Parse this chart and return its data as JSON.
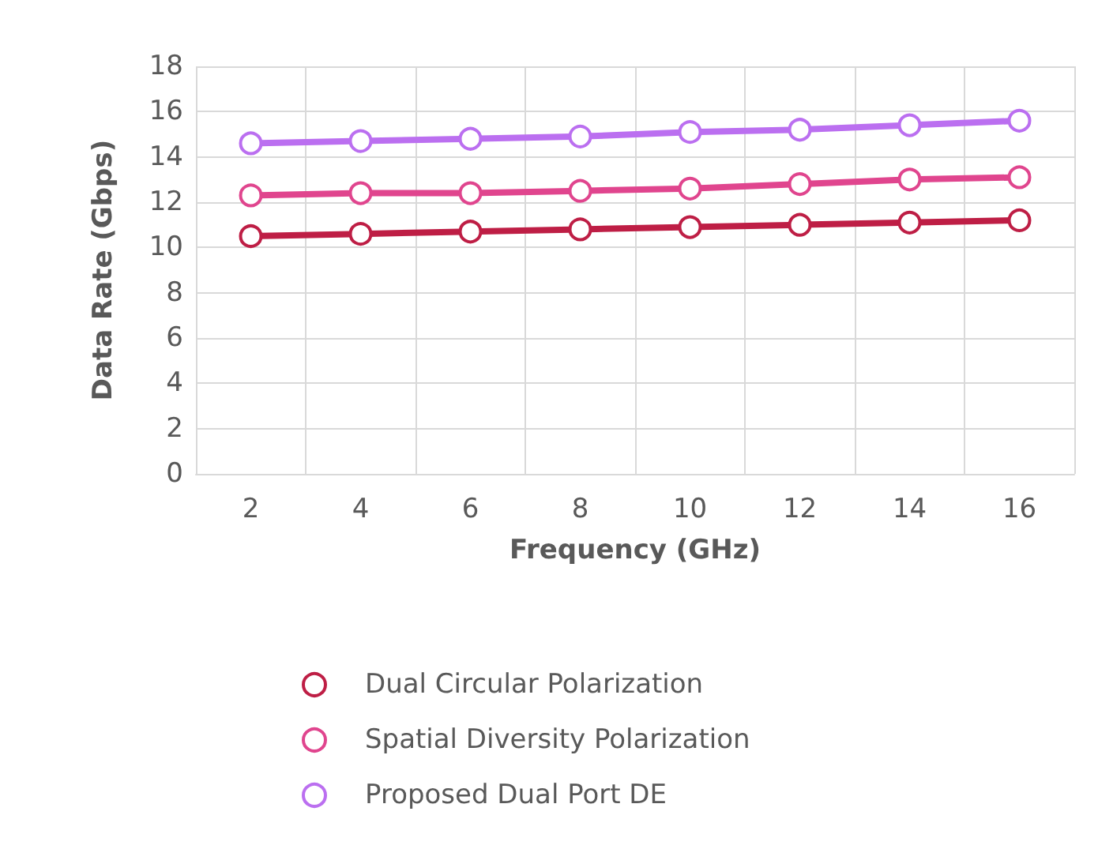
{
  "chart_data": {
    "type": "line",
    "xlabel": "Frequency (GHz)",
    "ylabel": "Data Rate (Gbps)",
    "categories": [
      "2",
      "4",
      "6",
      "8",
      "10",
      "12",
      "14",
      "16"
    ],
    "series": [
      {
        "name": "Dual Circular Polarization",
        "color": "#be1e45",
        "values": [
          10.5,
          10.6,
          10.7,
          10.8,
          10.9,
          11.0,
          11.1,
          11.2
        ]
      },
      {
        "name": "Spatial Diversity Polarization",
        "color": "#e0458e",
        "values": [
          12.3,
          12.4,
          12.4,
          12.5,
          12.6,
          12.8,
          13.0,
          13.1
        ]
      },
      {
        "name": "Proposed Dual Port DE",
        "color": "#bb6ff0",
        "values": [
          14.6,
          14.7,
          14.8,
          14.9,
          15.1,
          15.2,
          15.4,
          15.6
        ]
      }
    ],
    "ylim": [
      0,
      18
    ],
    "yticks": [
      0,
      2,
      4,
      6,
      8,
      10,
      12,
      14,
      16,
      18
    ],
    "grid": true,
    "legend": "bottom",
    "marker": "circle",
    "line_style": "solid"
  }
}
